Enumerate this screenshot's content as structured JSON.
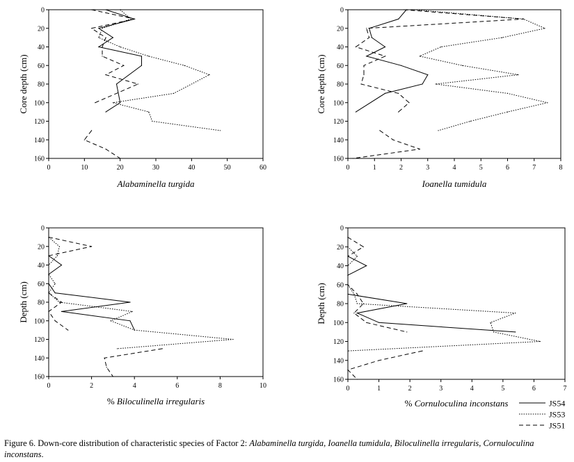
{
  "caption": {
    "label": "Figure 6. Down-core distribution of characteristic species of Factor 2: ",
    "species": "Alabaminella turgida, Ioanella tumidula, Biloculinella irregularis, Cornuloculina inconstans",
    "end": "."
  },
  "legend": [
    "JS54",
    "JS53",
    "JS51"
  ],
  "chart_data": [
    {
      "type": "line",
      "title": "",
      "xlabel": "Alabaminella turgida",
      "ylabel": "Core depth (cm)",
      "xlim": [
        0,
        60
      ],
      "xticks": [
        0,
        10,
        20,
        30,
        40,
        50,
        60
      ],
      "ylim": [
        0,
        160
      ],
      "yticks": [
        0,
        20,
        40,
        60,
        80,
        100,
        120,
        140,
        160
      ],
      "y_inverted": true,
      "series": [
        {
          "name": "JS54",
          "points": [
            [
              16,
              0
            ],
            [
              24,
              10
            ],
            [
              14,
              20
            ],
            [
              18,
              30
            ],
            [
              14,
              40
            ],
            [
              26,
              50
            ],
            [
              26,
              60
            ],
            [
              19,
              80
            ],
            [
              20,
              100
            ],
            [
              16,
              110
            ]
          ]
        },
        {
          "name": "JS53",
          "points": [
            [
              20,
              0
            ],
            [
              23,
              10
            ],
            [
              15,
              20
            ],
            [
              14,
              30
            ],
            [
              20,
              40
            ],
            [
              28,
              50
            ],
            [
              38,
              60
            ],
            [
              45,
              70
            ],
            [
              35,
              90
            ],
            [
              18,
              100
            ],
            [
              28,
              110
            ],
            [
              29,
              120
            ],
            [
              48,
              130
            ]
          ]
        },
        {
          "name": "JS51",
          "points": [
            [
              12,
              0
            ],
            [
              24,
              10
            ],
            [
              12,
              20
            ],
            [
              16,
              30
            ],
            [
              15,
              40
            ],
            [
              15,
              50
            ],
            [
              21,
              60
            ],
            [
              16,
              70
            ],
            [
              25,
              80
            ],
            [
              13,
              100
            ]
          ],
          "segment2": [
            [
              12,
              130
            ],
            [
              10,
              140
            ],
            [
              16,
              150
            ],
            [
              20,
              160
            ]
          ]
        }
      ]
    },
    {
      "type": "line",
      "title": "",
      "xlabel": "Ioanella tumidula",
      "ylabel": "Core depth (cm)",
      "xlim": [
        0,
        8
      ],
      "xticks": [
        0,
        1,
        2,
        3,
        4,
        5,
        6,
        7,
        8
      ],
      "ylim": [
        0,
        160
      ],
      "yticks": [
        0,
        20,
        40,
        60,
        80,
        100,
        120,
        140,
        160
      ],
      "y_inverted": true,
      "series": [
        {
          "name": "JS54",
          "points": [
            [
              2.2,
              0
            ],
            [
              1.9,
              10
            ],
            [
              0.8,
              20
            ],
            [
              0.9,
              30
            ],
            [
              1.4,
              40
            ],
            [
              0.7,
              50
            ],
            [
              2.0,
              60
            ],
            [
              3.0,
              70
            ],
            [
              2.8,
              80
            ],
            [
              1.4,
              90
            ],
            [
              0.3,
              110
            ]
          ]
        },
        {
          "name": "JS53",
          "points": [
            [
              2.5,
              0
            ],
            [
              6.6,
              10
            ],
            [
              7.4,
              20
            ],
            [
              5.8,
              30
            ],
            [
              3.5,
              40
            ],
            [
              2.7,
              50
            ],
            [
              4.3,
              60
            ],
            [
              6.4,
              70
            ],
            [
              3.3,
              80
            ],
            [
              6.0,
              90
            ],
            [
              7.5,
              100
            ],
            [
              6.0,
              110
            ],
            [
              4.6,
              120
            ],
            [
              3.4,
              130
            ]
          ]
        },
        {
          "name": "JS51",
          "points": [
            [
              2.1,
              0
            ],
            [
              6.6,
              10
            ],
            [
              0.7,
              20
            ],
            [
              0.8,
              30
            ],
            [
              0.3,
              40
            ],
            [
              1.4,
              50
            ],
            [
              0.6,
              60
            ],
            [
              0.6,
              70
            ],
            [
              0.5,
              80
            ],
            [
              1.9,
              90
            ],
            [
              2.3,
              100
            ],
            [
              1.9,
              110
            ]
          ],
          "segment2": [
            [
              1.2,
              130
            ],
            [
              1.7,
              140
            ],
            [
              2.7,
              150
            ],
            [
              0.2,
              160
            ]
          ]
        }
      ]
    },
    {
      "type": "line",
      "title": "",
      "xlabel": "% Biloculinella irregularis",
      "ylabel": "Depth (cm)",
      "xlim": [
        0,
        10
      ],
      "xticks": [
        0,
        2,
        4,
        6,
        8,
        10
      ],
      "ylim": [
        0,
        160
      ],
      "yticks": [
        0,
        20,
        40,
        60,
        80,
        100,
        120,
        140,
        160
      ],
      "y_inverted": true,
      "series": [
        {
          "name": "JS54",
          "points": [
            [
              0,
              30
            ],
            [
              0.6,
              40
            ],
            [
              0,
              50
            ],
            [
              0,
              60
            ],
            [
              0.3,
              70
            ],
            [
              3.8,
              80
            ],
            [
              0.6,
              90
            ],
            [
              3.8,
              100
            ],
            [
              4.0,
              110
            ]
          ]
        },
        {
          "name": "JS53",
          "points": [
            [
              0,
              10
            ],
            [
              0.5,
              20
            ],
            [
              0.4,
              30
            ],
            [
              0,
              40
            ],
            [
              0,
              50
            ],
            [
              0.3,
              60
            ],
            [
              0,
              70
            ],
            [
              0.5,
              80
            ],
            [
              3.9,
              90
            ],
            [
              2.9,
              100
            ],
            [
              4.0,
              110
            ],
            [
              8.6,
              120
            ],
            [
              3.2,
              130
            ]
          ]
        },
        {
          "name": "JS51",
          "points": [
            [
              0,
              10
            ],
            [
              2.0,
              20
            ],
            [
              0,
              30
            ],
            [
              0,
              40
            ],
            [
              0,
              50
            ],
            [
              0,
              60
            ],
            [
              0,
              70
            ],
            [
              0.6,
              80
            ],
            [
              0,
              90
            ],
            [
              0.3,
              100
            ],
            [
              0.9,
              110
            ]
          ],
          "segment2": [
            [
              5.3,
              130
            ],
            [
              2.6,
              140
            ],
            [
              2.7,
              150
            ],
            [
              3.0,
              160
            ]
          ]
        }
      ]
    },
    {
      "type": "line",
      "title": "",
      "xlabel": "% Cornuloculina inconstans",
      "ylabel": "Depth (cm)",
      "xlim": [
        0,
        7
      ],
      "xticks": [
        0,
        1,
        2,
        3,
        4,
        5,
        6,
        7
      ],
      "ylim": [
        0,
        160
      ],
      "yticks": [
        0,
        20,
        40,
        60,
        80,
        100,
        120,
        140,
        160
      ],
      "y_inverted": true,
      "series": [
        {
          "name": "JS54",
          "points": [
            [
              0,
              30
            ],
            [
              0.6,
              40
            ],
            [
              0,
              50
            ],
            [
              0,
              60
            ],
            [
              0,
              70
            ],
            [
              1.9,
              80
            ],
            [
              0.3,
              90
            ],
            [
              1.0,
              100
            ],
            [
              5.4,
              110
            ]
          ]
        },
        {
          "name": "JS53",
          "points": [
            [
              0,
              10
            ],
            [
              0,
              20
            ],
            [
              0.3,
              30
            ],
            [
              0,
              40
            ],
            [
              0,
              50
            ],
            [
              0,
              60
            ],
            [
              0.2,
              70
            ],
            [
              0.3,
              80
            ],
            [
              5.4,
              90
            ],
            [
              4.6,
              100
            ],
            [
              4.7,
              110
            ],
            [
              6.2,
              120
            ],
            [
              0,
              130
            ]
          ]
        },
        {
          "name": "JS51",
          "points": [
            [
              0,
              10
            ],
            [
              0.5,
              20
            ],
            [
              0,
              30
            ],
            [
              0,
              40
            ],
            [
              0,
              50
            ],
            [
              0,
              60
            ],
            [
              0.3,
              70
            ],
            [
              0.5,
              80
            ],
            [
              0.2,
              90
            ],
            [
              0.6,
              100
            ],
            [
              1.9,
              110
            ]
          ],
          "segment2": [
            [
              2.4,
              130
            ],
            [
              1.0,
              140
            ],
            [
              0,
              150
            ],
            [
              0.3,
              160
            ]
          ]
        }
      ]
    }
  ],
  "colors": {
    "line": "#000000",
    "background": "#ffffff"
  }
}
